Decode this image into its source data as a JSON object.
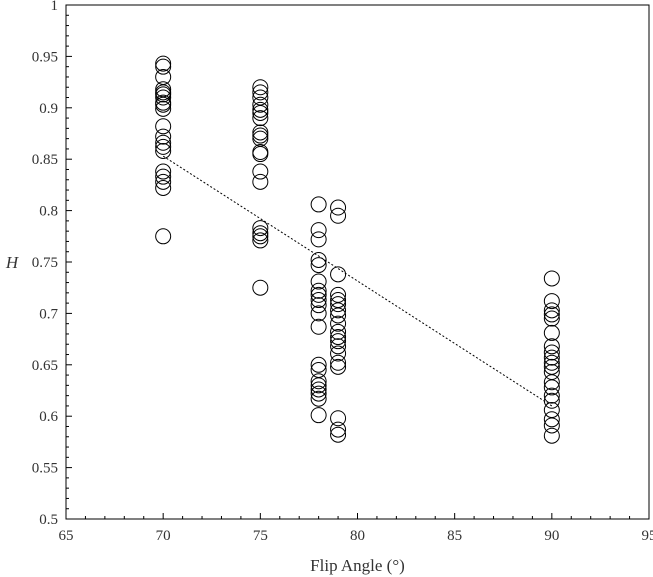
{
  "chart_data": {
    "type": "scatter",
    "title": "",
    "xlabel": "Flip Angle (°)",
    "ylabel": "H",
    "xlim": [
      65,
      95
    ],
    "ylim": [
      0.5,
      1
    ],
    "xticks": [
      "65",
      "70",
      "75",
      "80",
      "85",
      "90",
      "95"
    ],
    "yticks": [
      "0.5",
      "0.55",
      "0.6",
      "0.65",
      "0.7",
      "0.75",
      "0.8",
      "0.85",
      "0.9",
      "0.95",
      "1"
    ],
    "grid": false,
    "legend": "none",
    "marker": "open-circle",
    "colors": {
      "marker": "#000000",
      "axis": "#000000",
      "trend": "#000000"
    },
    "series": [
      {
        "points": [
          [
            70,
            0.775
          ],
          [
            70,
            0.822
          ],
          [
            70,
            0.828
          ],
          [
            70,
            0.833
          ],
          [
            70,
            0.838
          ],
          [
            70,
            0.858
          ],
          [
            70,
            0.862
          ],
          [
            70,
            0.866
          ],
          [
            70,
            0.872
          ],
          [
            70,
            0.882
          ],
          [
            70,
            0.899
          ],
          [
            70,
            0.903
          ],
          [
            70,
            0.905
          ],
          [
            70,
            0.91
          ],
          [
            70,
            0.913
          ],
          [
            70,
            0.915
          ],
          [
            70,
            0.918
          ],
          [
            70,
            0.93
          ],
          [
            70,
            0.94
          ],
          [
            70,
            0.943
          ],
          [
            75,
            0.725
          ],
          [
            75,
            0.771
          ],
          [
            75,
            0.775
          ],
          [
            75,
            0.778
          ],
          [
            75,
            0.783
          ],
          [
            75,
            0.828
          ],
          [
            75,
            0.838
          ],
          [
            75,
            0.855
          ],
          [
            75,
            0.857
          ],
          [
            75,
            0.87
          ],
          [
            75,
            0.873
          ],
          [
            75,
            0.876
          ],
          [
            75,
            0.89
          ],
          [
            75,
            0.895
          ],
          [
            75,
            0.898
          ],
          [
            75,
            0.903
          ],
          [
            75,
            0.91
          ],
          [
            75,
            0.915
          ],
          [
            75,
            0.92
          ],
          [
            78,
            0.601
          ],
          [
            78,
            0.617
          ],
          [
            78,
            0.622
          ],
          [
            78,
            0.626
          ],
          [
            78,
            0.63
          ],
          [
            78,
            0.634
          ],
          [
            78,
            0.645
          ],
          [
            78,
            0.65
          ],
          [
            78,
            0.687
          ],
          [
            78,
            0.7
          ],
          [
            78,
            0.708
          ],
          [
            78,
            0.713
          ],
          [
            78,
            0.718
          ],
          [
            78,
            0.722
          ],
          [
            78,
            0.731
          ],
          [
            78,
            0.747
          ],
          [
            78,
            0.752
          ],
          [
            78,
            0.772
          ],
          [
            78,
            0.781
          ],
          [
            78,
            0.806
          ],
          [
            79,
            0.582
          ],
          [
            79,
            0.587
          ],
          [
            79,
            0.598
          ],
          [
            79,
            0.648
          ],
          [
            79,
            0.652
          ],
          [
            79,
            0.661
          ],
          [
            79,
            0.668
          ],
          [
            79,
            0.673
          ],
          [
            79,
            0.677
          ],
          [
            79,
            0.682
          ],
          [
            79,
            0.69
          ],
          [
            79,
            0.698
          ],
          [
            79,
            0.703
          ],
          [
            79,
            0.709
          ],
          [
            79,
            0.713
          ],
          [
            79,
            0.718
          ],
          [
            79,
            0.738
          ],
          [
            79,
            0.795
          ],
          [
            79,
            0.803
          ],
          [
            90,
            0.581
          ],
          [
            90,
            0.591
          ],
          [
            90,
            0.597
          ],
          [
            90,
            0.606
          ],
          [
            90,
            0.615
          ],
          [
            90,
            0.62
          ],
          [
            90,
            0.628
          ],
          [
            90,
            0.633
          ],
          [
            90,
            0.643
          ],
          [
            90,
            0.648
          ],
          [
            90,
            0.652
          ],
          [
            90,
            0.657
          ],
          [
            90,
            0.662
          ],
          [
            90,
            0.668
          ],
          [
            90,
            0.681
          ],
          [
            90,
            0.695
          ],
          [
            90,
            0.699
          ],
          [
            90,
            0.703
          ],
          [
            90,
            0.712
          ],
          [
            90,
            0.734
          ]
        ]
      }
    ],
    "trendline": {
      "style": "dotted",
      "x": [
        70,
        90
      ],
      "y": [
        0.853,
        0.61
      ]
    }
  }
}
